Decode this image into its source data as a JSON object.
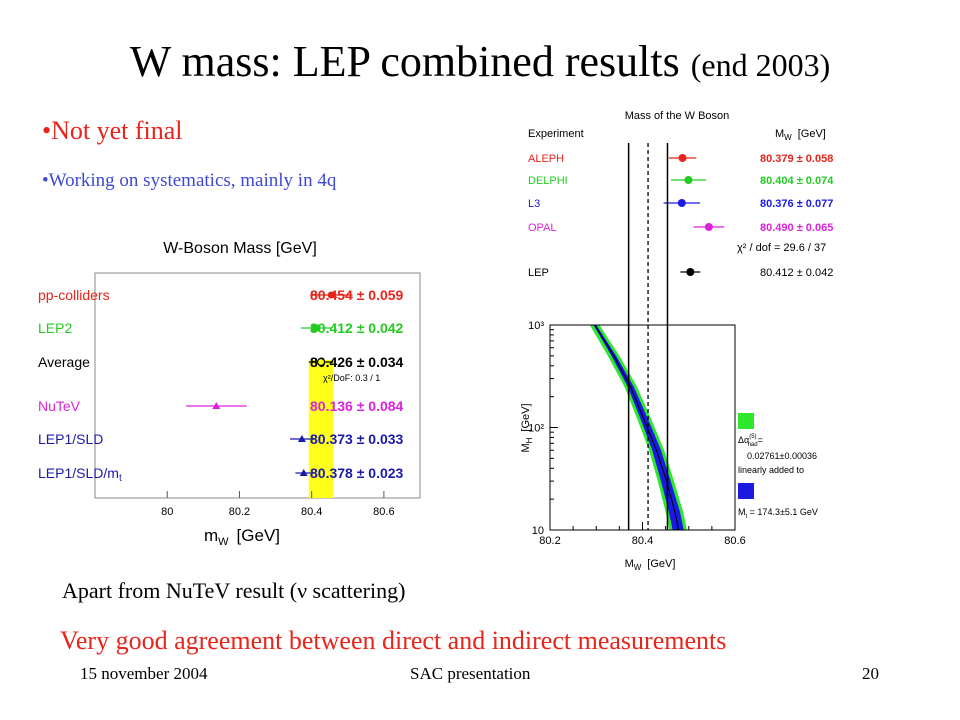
{
  "slide": {
    "title": "W mass: LEP combined results",
    "title_sub": "(end 2003)",
    "bullet1": "•Not yet final",
    "bullet2": "•Working on systematics, mainly in 4q",
    "note": "Apart from NuTeV result (ν scattering)",
    "conclusion": "Very good agreement between direct and indirect measurements",
    "footer_date": "15 november 2004",
    "footer_title": "SAC presentation",
    "page_number": "20"
  },
  "chart_data": [
    {
      "type": "scatter",
      "title": "W-Boson Mass [GeV]",
      "xlabel": "m",
      "xlabel_sub": "W",
      "xlabel_unit": "[GeV]",
      "xlim": [
        79.8,
        80.7
      ],
      "xticks": [
        "80",
        "80.2",
        "80.4",
        "80.6"
      ],
      "chi2_label": "χ²/DoF: 0.3 / 1",
      "band": {
        "from": 80.392,
        "to": 80.46,
        "color": "#ffff1a"
      },
      "rows": [
        {
          "name": "pp-colliders",
          "value": 80.454,
          "error": 0.059,
          "value_text": "80.454 ± 0.059",
          "color": "#e8241b",
          "marker": "circle"
        },
        {
          "name": "LEP2",
          "value": 80.412,
          "error": 0.042,
          "value_text": "80.412 ± 0.042",
          "color": "#22cc22",
          "marker": "square"
        },
        {
          "name": "Average",
          "value": 80.426,
          "error": 0.034,
          "value_text": "80.426 ± 0.034",
          "color": "#000000",
          "marker": "open-circle"
        },
        {
          "name": "NuTeV",
          "value": 80.136,
          "error": 0.084,
          "value_text": "80.136 ± 0.084",
          "color": "#dd22dd",
          "marker": "triangle"
        },
        {
          "name": "LEP1/SLD",
          "value": 80.373,
          "error": 0.033,
          "value_text": "80.373 ± 0.033",
          "color": "#1a1aaa",
          "marker": "triangle"
        },
        {
          "name": "LEP1/SLD/m",
          "name_sub": "t",
          "value": 80.378,
          "error": 0.023,
          "value_text": "80.378 ± 0.023",
          "color": "#1a1aaa",
          "marker": "triangle"
        }
      ]
    },
    {
      "type": "scatter",
      "title": "Mass of the W Boson",
      "header_experiment": "Experiment",
      "header_mw": "M",
      "header_mw_sub": "W",
      "header_unit": "[GeV]",
      "xlim": [
        80.2,
        80.6
      ],
      "chi2_label": "χ² / dof  =  29.6 / 37",
      "lep_band": [
        80.37,
        80.454
      ],
      "rows": [
        {
          "name": "ALEPH",
          "value": 80.379,
          "error": 0.058,
          "value_text": "80.379 ± 0.058",
          "color": "#e8241b"
        },
        {
          "name": "DELPHI",
          "value": 80.404,
          "error": 0.074,
          "value_text": "80.404 ± 0.074",
          "color": "#22cc22"
        },
        {
          "name": "L3",
          "value": 80.376,
          "error": 0.077,
          "value_text": "80.376 ± 0.077",
          "color": "#1a1ae0"
        },
        {
          "name": "OPAL",
          "value": 80.49,
          "error": 0.065,
          "value_text": "80.490 ± 0.065",
          "color": "#dd22dd"
        },
        {
          "name": "LEP",
          "value": 80.412,
          "error": 0.042,
          "value_text": "80.412 ± 0.042",
          "color": "#000000"
        }
      ]
    },
    {
      "type": "area",
      "xlabel": "M",
      "xlabel_sub": "W",
      "xlabel_unit": "[GeV]",
      "ylabel": "M",
      "ylabel_sub": "H",
      "ylabel_unit": "[GeV]",
      "xlim": [
        80.2,
        80.6
      ],
      "ylim": [
        10,
        1000
      ],
      "yscale": "log",
      "xticks": [
        "80.2",
        "80.4",
        "80.6"
      ],
      "yticks": [
        "10",
        "10²",
        "10³"
      ],
      "green_band": [
        [
          80.286,
          1000
        ],
        [
          80.325,
          500
        ],
        [
          80.361,
          250
        ],
        [
          80.389,
          120
        ],
        [
          80.414,
          60
        ],
        [
          80.433,
          30
        ],
        [
          80.45,
          15
        ],
        [
          80.458,
          10
        ],
        [
          80.496,
          10
        ],
        [
          80.488,
          15
        ],
        [
          80.468,
          30
        ],
        [
          80.447,
          60
        ],
        [
          80.419,
          120
        ],
        [
          80.388,
          250
        ],
        [
          80.35,
          500
        ],
        [
          80.307,
          1000
        ]
      ],
      "blue_band": [
        [
          80.294,
          1000
        ],
        [
          80.333,
          500
        ],
        [
          80.368,
          250
        ],
        [
          80.396,
          120
        ],
        [
          80.421,
          60
        ],
        [
          80.44,
          30
        ],
        [
          80.457,
          15
        ],
        [
          80.465,
          10
        ],
        [
          80.489,
          10
        ],
        [
          80.481,
          15
        ],
        [
          80.461,
          30
        ],
        [
          80.44,
          60
        ],
        [
          80.412,
          120
        ],
        [
          80.381,
          250
        ],
        [
          80.343,
          500
        ],
        [
          80.3,
          1000
        ]
      ],
      "center_curve": [
        [
          80.297,
          1000
        ],
        [
          80.338,
          500
        ],
        [
          80.374,
          250
        ],
        [
          80.403,
          120
        ],
        [
          80.43,
          60
        ],
        [
          80.452,
          30
        ],
        [
          80.47,
          15
        ],
        [
          80.478,
          10
        ]
      ],
      "legend": {
        "green_label": "Δα",
        "green_sup": "(5)",
        "green_sub": "had",
        "green_eq": "=",
        "green_value": "0.02761±0.00036",
        "green_note": "linearly added to",
        "blue_label": "M",
        "blue_sub": "t",
        "blue_value": " = 174.3±5.1 GeV",
        "green_color": "#2ee82e",
        "blue_color": "#1a1ae0"
      }
    }
  ]
}
